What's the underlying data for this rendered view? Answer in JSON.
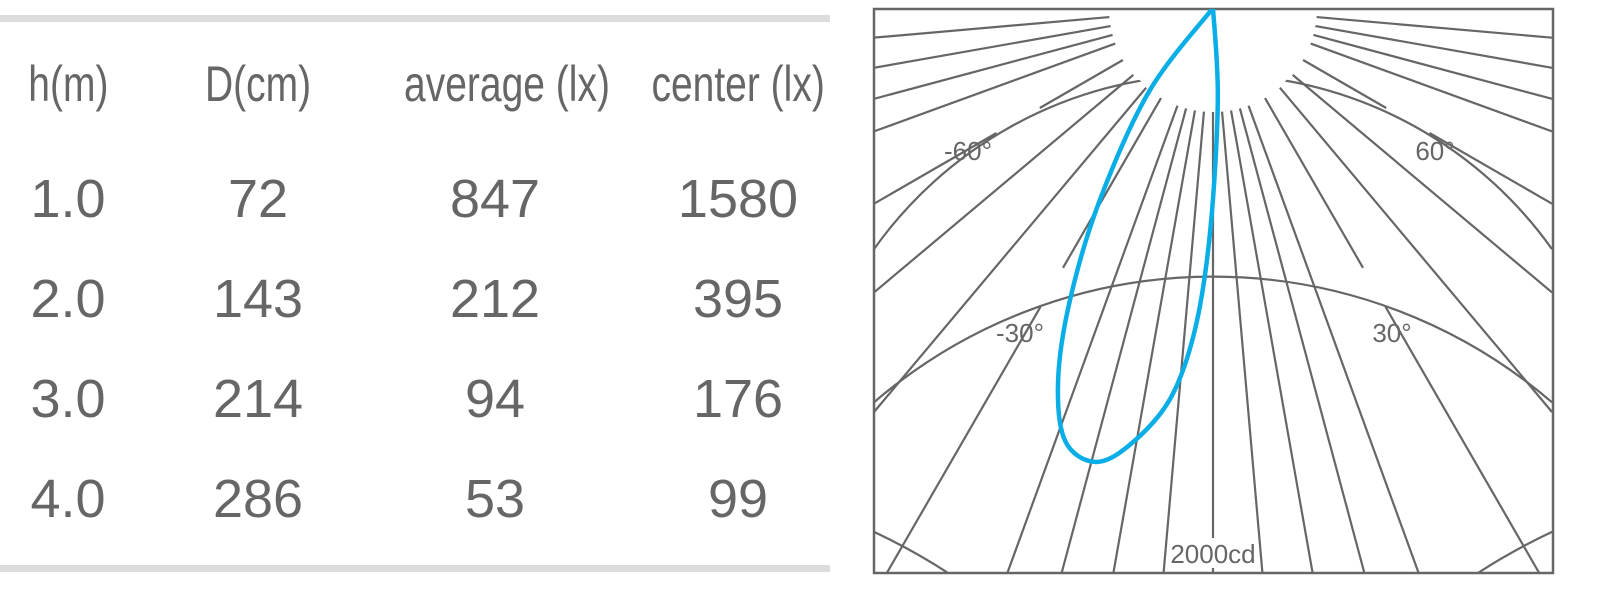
{
  "table": {
    "headers": [
      "h(m)",
      "D(cm)",
      "average (lx)",
      "center (lx)"
    ],
    "rows": [
      [
        "1.0",
        "72",
        "847",
        "1580"
      ],
      [
        "2.0",
        "143",
        "212",
        "395"
      ],
      [
        "3.0",
        "214",
        "94",
        "176"
      ],
      [
        "4.0",
        "286",
        "53",
        "99"
      ]
    ]
  },
  "chart_data": {
    "type": "polar",
    "title": "",
    "radial_max_cd": 2000,
    "radial_rings_cd": [
      400,
      800,
      1200,
      1600,
      2000
    ],
    "radial_label": "2000cd",
    "angle_labels": [
      "-60°",
      "60°",
      "-30°",
      "30°"
    ],
    "series": [
      {
        "color": "#0aaee6",
        "points": [
          {
            "angle": 0,
            "cd": 0
          },
          {
            "angle": 3,
            "cd": 354
          },
          {
            "angle": -0.7,
            "cd": 854
          },
          {
            "angle": -3.2,
            "cd": 1238
          },
          {
            "angle": -6.3,
            "cd": 1515
          },
          {
            "angle": -10.8,
            "cd": 1711
          },
          {
            "angle": -14.6,
            "cd": 1804
          },
          {
            "angle": -18.9,
            "cd": 1758
          },
          {
            "angle": -22.6,
            "cd": 1550
          },
          {
            "angle": -26.1,
            "cd": 1250
          },
          {
            "angle": -30.5,
            "cd": 858
          },
          {
            "angle": -37.5,
            "cd": 400
          },
          {
            "angle": 0,
            "cd": 0
          }
        ]
      }
    ],
    "grid_color": "#666666"
  }
}
